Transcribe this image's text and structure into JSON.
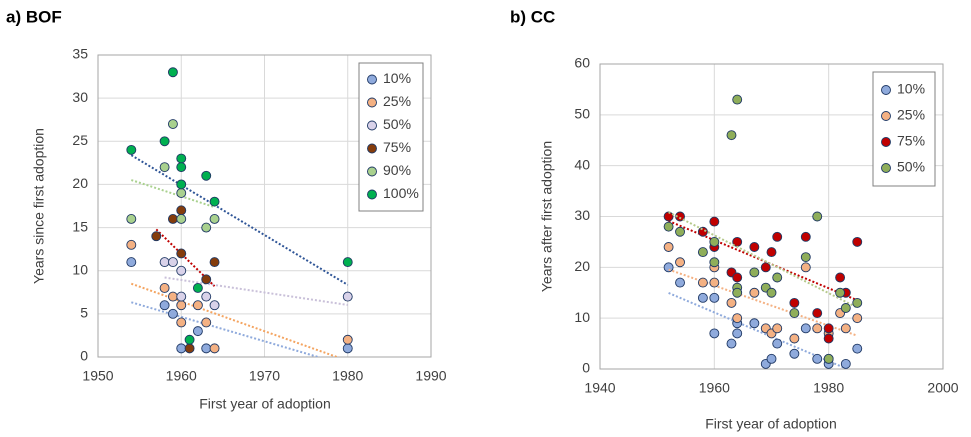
{
  "chart_data": [
    {
      "type": "scatter",
      "title": "a) BOF",
      "x_label": "First year of adoption",
      "y_label": "Years since first adoption",
      "xlim": [
        1950,
        1990
      ],
      "xticks": [
        1950,
        1960,
        1970,
        1980,
        1990
      ],
      "ylim": [
        0,
        35
      ],
      "yticks": [
        0,
        5,
        10,
        15,
        20,
        25,
        30,
        35
      ],
      "grid": true,
      "legend": "top-right",
      "trendline": true,
      "series": [
        {
          "name": "10%",
          "color": "#8faadc",
          "trend_color": "#8faadc",
          "x": [
            1954,
            1958,
            1959,
            1960,
            1962,
            1963,
            1980
          ],
          "values": [
            11,
            6,
            5,
            1,
            3,
            1,
            1
          ]
        },
        {
          "name": "25%",
          "color": "#f4b183",
          "trend_color": "#f4a460",
          "x": [
            1954,
            1958,
            1959,
            1960,
            1960,
            1962,
            1963,
            1964,
            1980
          ],
          "values": [
            13,
            8,
            7,
            6,
            4,
            6,
            4,
            1,
            2
          ]
        },
        {
          "name": "50%",
          "color": "#d9d2e9",
          "trend_color": "#c9c0d9",
          "x": [
            1958,
            1959,
            1960,
            1960,
            1963,
            1964,
            1980
          ],
          "values": [
            11,
            11,
            10,
            7,
            7,
            6,
            7
          ]
        },
        {
          "name": "75%",
          "color": "#843c0c",
          "trend_color": "#c00000",
          "x": [
            1957,
            1959,
            1960,
            1960,
            1961,
            1963,
            1964
          ],
          "values": [
            14,
            16,
            17,
            12,
            1,
            9,
            11
          ]
        },
        {
          "name": "90%",
          "color": "#a9d18e",
          "trend_color": "#a9d18e",
          "x": [
            1954,
            1958,
            1959,
            1960,
            1960,
            1963,
            1964
          ],
          "values": [
            16,
            22,
            27,
            19,
            16,
            15,
            16
          ]
        },
        {
          "name": "100%",
          "color": "#00b050",
          "trend_color": "#2f5597",
          "x": [
            1954,
            1958,
            1959,
            1960,
            1960,
            1960,
            1961,
            1962,
            1963,
            1964,
            1980
          ],
          "values": [
            24,
            25,
            33,
            23,
            22,
            20,
            2,
            8,
            21,
            18,
            11
          ]
        }
      ]
    },
    {
      "type": "scatter",
      "title": "b) CC",
      "x_label": "First year of adoption",
      "y_label": "Years after first adoption",
      "xlim": [
        1940,
        2000
      ],
      "xticks": [
        1940,
        1960,
        1980,
        2000
      ],
      "ylim": [
        0,
        60
      ],
      "yticks": [
        0,
        10,
        20,
        30,
        40,
        50,
        60
      ],
      "grid": true,
      "legend": "top-right",
      "trendline": true,
      "series": [
        {
          "name": "10%",
          "color": "#8faadc",
          "trend_color": "#8faadc",
          "x": [
            1952,
            1954,
            1958,
            1960,
            1960,
            1963,
            1964,
            1964,
            1967,
            1969,
            1970,
            1971,
            1974,
            1976,
            1978,
            1980,
            1980,
            1983,
            1985
          ],
          "values": [
            20,
            17,
            14,
            14,
            7,
            5,
            9,
            7,
            9,
            1,
            2,
            5,
            3,
            8,
            2,
            1,
            2,
            1,
            4
          ]
        },
        {
          "name": "25%",
          "color": "#f4b183",
          "trend_color": "#f4b183",
          "x": [
            1952,
            1954,
            1958,
            1960,
            1960,
            1963,
            1964,
            1967,
            1969,
            1970,
            1971,
            1974,
            1976,
            1978,
            1980,
            1982,
            1983,
            1985
          ],
          "values": [
            24,
            21,
            17,
            20,
            17,
            13,
            10,
            15,
            8,
            7,
            8,
            6,
            20,
            8,
            7,
            11,
            8,
            10
          ]
        },
        {
          "name": "75%",
          "color": "#c00000",
          "trend_color": "#c00000",
          "x": [
            1952,
            1954,
            1958,
            1960,
            1960,
            1963,
            1964,
            1964,
            1967,
            1969,
            1970,
            1971,
            1974,
            1976,
            1978,
            1980,
            1980,
            1982,
            1983,
            1985
          ],
          "values": [
            30,
            30,
            27,
            29,
            24,
            19,
            25,
            18,
            24,
            20,
            23,
            26,
            13,
            26,
            11,
            8,
            6,
            18,
            15,
            25
          ]
        },
        {
          "name": "50%",
          "color": "#8fae5a",
          "trend_color": "#b5c98a",
          "x": [
            1952,
            1954,
            1958,
            1960,
            1960,
            1963,
            1964,
            1964,
            1964,
            1967,
            1969,
            1970,
            1971,
            1974,
            1976,
            1978,
            1980,
            1982,
            1983,
            1985
          ],
          "values": [
            28,
            27,
            23,
            25,
            21,
            46,
            53,
            16,
            15,
            19,
            16,
            15,
            18,
            11,
            22,
            30,
            2,
            15,
            12,
            13
          ]
        }
      ]
    }
  ]
}
